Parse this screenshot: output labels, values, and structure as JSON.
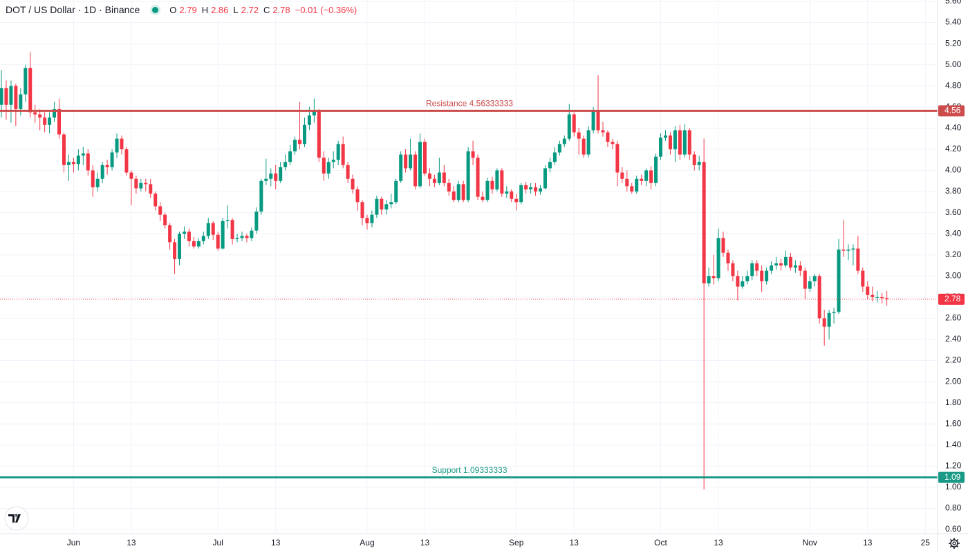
{
  "chart_data": {
    "type": "candlestick",
    "title": "DOT / US Dollar · 1D · Binance",
    "ohlc_legend": [
      {
        "label": "O",
        "value": 2.79
      },
      {
        "label": "H",
        "value": 2.86
      },
      {
        "label": "L",
        "value": 2.72
      },
      {
        "label": "C",
        "value": 2.78
      }
    ],
    "change": "−0.01 (−0.36%)",
    "categories": [
      null,
      null,
      null,
      null,
      null,
      null,
      null,
      null,
      null,
      null,
      null,
      null,
      null,
      null,
      null,
      "Jun",
      null,
      null,
      null,
      null,
      null,
      null,
      null,
      null,
      null,
      null,
      null,
      "13",
      null,
      null,
      null,
      null,
      null,
      null,
      null,
      null,
      null,
      null,
      null,
      null,
      null,
      null,
      null,
      null,
      null,
      "Jul",
      null,
      null,
      null,
      null,
      null,
      null,
      null,
      null,
      null,
      null,
      null,
      "13",
      null,
      null,
      null,
      null,
      null,
      null,
      null,
      null,
      null,
      null,
      null,
      null,
      null,
      null,
      null,
      null,
      null,
      null,
      "Aug",
      null,
      null,
      null,
      null,
      null,
      null,
      null,
      null,
      null,
      null,
      null,
      "13",
      null,
      null,
      null,
      null,
      null,
      null,
      null,
      null,
      null,
      null,
      null,
      null,
      null,
      null,
      null,
      null,
      null,
      null,
      "Sep",
      null,
      null,
      null,
      null,
      null,
      null,
      null,
      null,
      null,
      null,
      null,
      "13",
      null,
      null,
      null,
      null,
      null,
      null,
      null,
      null,
      null,
      null,
      null,
      null,
      null,
      null,
      null,
      null,
      null,
      "Oct",
      null,
      null,
      null,
      null,
      null,
      null,
      null,
      null,
      null,
      null,
      null,
      "13",
      null,
      null,
      null,
      null,
      null,
      null,
      null,
      null,
      null,
      null,
      null,
      null,
      null,
      null,
      null,
      null,
      null,
      null,
      "Nov",
      null,
      null,
      null,
      null,
      null,
      null,
      null,
      null,
      null,
      null,
      null,
      "13",
      null,
      null,
      null,
      null,
      null,
      null,
      null,
      null,
      null,
      null,
      null,
      "25",
      null,
      null
    ],
    "open": [
      4.62,
      4.78,
      4.62,
      4.8,
      4.58,
      4.72,
      4.97,
      4.55,
      4.53,
      4.5,
      4.43,
      4.5,
      4.58,
      4.34,
      4.05,
      4.08,
      4.06,
      4.14,
      4.16,
      4.0,
      3.84,
      3.92,
      4.05,
      4.03,
      4.17,
      4.3,
      4.2,
      3.98,
      3.92,
      3.83,
      3.88,
      3.87,
      3.78,
      3.66,
      3.58,
      3.48,
      3.32,
      3.16,
      3.4,
      3.42,
      3.33,
      3.28,
      3.33,
      3.38,
      3.5,
      3.39,
      3.26,
      3.52,
      3.53,
      3.35,
      3.36,
      3.38,
      3.36,
      3.43,
      3.61,
      3.9,
      3.92,
      3.97,
      3.9,
      4.03,
      4.08,
      4.18,
      4.29,
      4.25,
      4.43,
      4.52,
      4.56,
      4.12,
      3.97,
      4.08,
      4.1,
      4.25,
      4.05,
      3.92,
      3.82,
      3.7,
      3.55,
      3.5,
      3.58,
      3.73,
      3.63,
      3.68,
      3.7,
      3.9,
      4.15,
      4.02,
      4.15,
      3.85,
      4.27,
      3.97,
      3.92,
      3.88,
      3.98,
      3.88,
      3.8,
      3.72,
      3.87,
      3.72,
      4.18,
      4.12,
      3.75,
      3.72,
      3.9,
      3.82,
      4.0,
      3.78,
      3.8,
      3.73,
      3.7,
      3.86,
      3.82,
      3.84,
      3.8,
      3.83,
      4.02,
      4.08,
      4.17,
      4.25,
      4.3,
      4.53,
      4.36,
      4.3,
      4.15,
      4.38,
      4.56,
      4.38,
      4.36,
      4.27,
      4.25,
      3.98,
      3.92,
      3.85,
      3.8,
      3.92,
      3.9,
      4.0,
      3.88,
      4.13,
      4.31,
      4.33,
      4.2,
      4.38,
      4.15,
      4.38,
      4.15,
      4.05,
      4.08,
      2.93,
      3.0,
      2.98,
      3.36,
      3.22,
      3.12,
      3.0,
      2.9,
      2.95,
      3.0,
      3.12,
      3.05,
      2.95,
      3.05,
      3.1,
      3.12,
      3.1,
      3.18,
      3.08,
      3.1,
      3.05,
      2.88,
      2.95,
      3.0,
      2.6,
      2.52,
      2.65,
      2.66,
      3.25,
      3.24,
      3.25,
      3.26,
      3.05,
      2.9,
      2.82,
      2.8,
      2.8,
      2.79,
      null,
      null,
      null,
      null,
      null,
      null,
      null,
      null,
      null,
      null
    ],
    "high": [
      4.95,
      4.85,
      4.85,
      4.82,
      4.78,
      5.0,
      5.12,
      4.62,
      4.58,
      4.55,
      4.55,
      4.65,
      4.68,
      4.36,
      4.15,
      4.12,
      4.2,
      4.22,
      4.2,
      4.05,
      3.98,
      4.08,
      4.1,
      4.2,
      4.35,
      4.33,
      4.22,
      4.0,
      3.95,
      3.92,
      3.92,
      3.92,
      3.8,
      3.7,
      3.6,
      3.5,
      3.35,
      3.42,
      3.47,
      3.45,
      3.37,
      3.36,
      3.42,
      3.55,
      3.52,
      3.42,
      3.55,
      3.67,
      3.55,
      3.4,
      3.42,
      3.4,
      3.46,
      3.65,
      3.92,
      4.11,
      4.02,
      4.05,
      4.08,
      4.15,
      4.24,
      4.32,
      4.65,
      4.5,
      4.6,
      4.68,
      4.58,
      4.18,
      4.12,
      4.18,
      4.28,
      4.32,
      4.08,
      3.96,
      3.85,
      3.72,
      3.58,
      3.62,
      3.76,
      3.75,
      3.72,
      3.78,
      3.92,
      4.18,
      4.2,
      4.3,
      4.18,
      4.35,
      4.3,
      4.02,
      3.96,
      4.12,
      4.05,
      3.92,
      3.85,
      3.9,
      3.9,
      4.22,
      4.28,
      4.15,
      3.8,
      3.93,
      3.94,
      4.02,
      4.02,
      3.85,
      3.82,
      3.78,
      3.88,
      3.89,
      3.88,
      3.88,
      3.86,
      4.05,
      4.12,
      4.22,
      4.28,
      4.33,
      4.63,
      4.55,
      4.4,
      4.33,
      4.42,
      4.6,
      4.9,
      4.46,
      4.38,
      4.3,
      4.28,
      4.03,
      4.0,
      3.88,
      3.95,
      3.96,
      4.02,
      4.04,
      4.16,
      4.35,
      4.38,
      4.36,
      4.42,
      4.43,
      4.44,
      4.4,
      4.18,
      4.14,
      4.3,
      3.08,
      3.2,
      3.45,
      3.42,
      3.25,
      3.15,
      3.05,
      3.0,
      3.05,
      3.15,
      3.15,
      3.1,
      3.08,
      3.14,
      3.18,
      3.16,
      3.24,
      3.22,
      3.15,
      3.14,
      3.08,
      3.0,
      3.02,
      3.02,
      2.68,
      2.68,
      2.7,
      3.35,
      3.53,
      3.3,
      3.3,
      3.38,
      3.08,
      2.95,
      2.9,
      2.86,
      2.84,
      2.86,
      null,
      null,
      null,
      null,
      null,
      null,
      null,
      null,
      null,
      null
    ],
    "low": [
      4.5,
      4.48,
      4.45,
      4.42,
      4.52,
      4.65,
      4.5,
      4.45,
      4.38,
      4.36,
      4.35,
      4.46,
      4.3,
      3.98,
      3.9,
      3.98,
      4.0,
      4.05,
      3.95,
      3.75,
      3.8,
      3.88,
      3.96,
      4.0,
      4.12,
      4.15,
      3.95,
      3.67,
      3.78,
      3.8,
      3.8,
      3.74,
      3.62,
      3.52,
      3.45,
      3.25,
      3.02,
      3.1,
      3.35,
      3.28,
      3.26,
      3.26,
      3.3,
      3.35,
      3.34,
      3.24,
      3.25,
      3.45,
      3.3,
      3.32,
      3.33,
      3.32,
      3.33,
      3.4,
      3.58,
      3.86,
      3.85,
      3.82,
      3.88,
      4.0,
      4.05,
      4.15,
      4.2,
      4.22,
      4.38,
      4.45,
      4.08,
      3.9,
      3.92,
      4.02,
      4.05,
      4.02,
      3.88,
      3.78,
      3.62,
      3.48,
      3.44,
      3.46,
      3.55,
      3.58,
      3.58,
      3.64,
      3.68,
      3.88,
      3.98,
      4.0,
      3.82,
      3.83,
      3.95,
      3.85,
      3.84,
      3.86,
      3.85,
      3.76,
      3.7,
      3.7,
      3.7,
      3.7,
      4.05,
      3.72,
      3.7,
      3.7,
      3.78,
      3.8,
      3.75,
      3.74,
      3.7,
      3.62,
      3.68,
      3.78,
      3.78,
      3.76,
      3.77,
      3.82,
      3.98,
      4.05,
      4.14,
      4.22,
      4.28,
      4.32,
      4.15,
      4.12,
      4.12,
      4.35,
      4.35,
      4.32,
      4.22,
      4.2,
      3.85,
      3.88,
      3.8,
      3.78,
      3.78,
      3.86,
      3.85,
      3.82,
      3.85,
      4.1,
      4.28,
      4.15,
      4.08,
      4.1,
      4.12,
      4.1,
      4.0,
      4.0,
      0.98,
      2.9,
      2.92,
      2.95,
      3.18,
      3.05,
      2.95,
      2.77,
      2.88,
      2.92,
      2.96,
      3.0,
      2.85,
      2.92,
      3.02,
      3.06,
      3.05,
      3.08,
      3.05,
      3.03,
      3.0,
      2.78,
      2.85,
      2.9,
      2.55,
      2.34,
      2.4,
      2.55,
      2.64,
      3.18,
      3.15,
      3.1,
      3.02,
      2.85,
      2.78,
      2.76,
      2.75,
      2.74,
      2.72,
      null,
      null,
      null,
      null,
      null,
      null,
      null,
      null,
      null,
      null
    ],
    "close": [
      4.78,
      4.62,
      4.8,
      4.58,
      4.72,
      4.97,
      4.55,
      4.53,
      4.5,
      4.43,
      4.5,
      4.58,
      4.34,
      4.05,
      4.08,
      4.06,
      4.14,
      4.16,
      4.0,
      3.84,
      3.92,
      4.05,
      4.03,
      4.17,
      4.3,
      4.2,
      3.98,
      3.92,
      3.83,
      3.88,
      3.87,
      3.78,
      3.66,
      3.58,
      3.48,
      3.32,
      3.16,
      3.4,
      3.42,
      3.33,
      3.28,
      3.33,
      3.38,
      3.5,
      3.39,
      3.26,
      3.52,
      3.53,
      3.35,
      3.36,
      3.38,
      3.36,
      3.43,
      3.61,
      3.9,
      3.92,
      3.97,
      3.9,
      4.03,
      4.08,
      4.18,
      4.29,
      4.25,
      4.43,
      4.52,
      4.56,
      4.12,
      3.97,
      4.08,
      4.1,
      4.25,
      4.05,
      3.92,
      3.82,
      3.7,
      3.55,
      3.5,
      3.58,
      3.73,
      3.63,
      3.68,
      3.7,
      3.9,
      4.15,
      4.02,
      4.15,
      3.85,
      4.27,
      3.97,
      3.92,
      3.88,
      3.98,
      3.88,
      3.8,
      3.72,
      3.87,
      3.72,
      4.18,
      4.12,
      3.75,
      3.72,
      3.9,
      3.82,
      4.0,
      3.78,
      3.8,
      3.73,
      3.7,
      3.86,
      3.82,
      3.84,
      3.8,
      3.83,
      4.02,
      4.08,
      4.17,
      4.25,
      4.3,
      4.53,
      4.36,
      4.3,
      4.15,
      4.38,
      4.56,
      4.38,
      4.36,
      4.27,
      4.25,
      3.98,
      3.92,
      3.85,
      3.8,
      3.92,
      3.9,
      4.0,
      3.88,
      4.13,
      4.31,
      4.33,
      4.2,
      4.38,
      4.15,
      4.38,
      4.15,
      4.05,
      4.08,
      2.93,
      3.0,
      2.98,
      3.36,
      3.22,
      3.12,
      3.0,
      2.9,
      2.95,
      3.0,
      3.12,
      3.05,
      2.95,
      3.05,
      3.1,
      3.12,
      3.1,
      3.18,
      3.08,
      3.1,
      3.05,
      2.88,
      2.95,
      3.0,
      2.6,
      2.52,
      2.65,
      2.66,
      3.25,
      3.24,
      3.25,
      3.26,
      3.05,
      2.9,
      2.82,
      2.8,
      2.8,
      2.79,
      2.78,
      null,
      null,
      null,
      null,
      null,
      null,
      null,
      null,
      null,
      null
    ],
    "up_color": "#089981",
    "down_color": "#f23645",
    "levels": [
      {
        "label": "Resistance 4.56333333",
        "value": 4.56333333,
        "value_label": "4.56",
        "color": "#cc4b4b"
      },
      {
        "label": "Support 1.09333333",
        "value": 1.09333333,
        "value_label": "1.09",
        "color": "#1a9a86"
      }
    ],
    "last_price": {
      "value": 2.78,
      "color": "#f23645"
    },
    "ylim": [
      0.561,
      5.613
    ],
    "yticks": [
      {
        "value": 0.6,
        "label": "0.60"
      },
      {
        "value": 0.8,
        "label": "0.80"
      },
      {
        "value": 1,
        "label": "1.00"
      },
      {
        "value": 1.2,
        "label": "1.20"
      },
      {
        "value": 1.4,
        "label": "1.40"
      },
      {
        "value": 1.6,
        "label": "1.60"
      },
      {
        "value": 1.8,
        "label": "1.80"
      },
      {
        "value": 2,
        "label": "2.00"
      },
      {
        "value": 2.2,
        "label": "2.20"
      },
      {
        "value": 2.4,
        "label": "2.40"
      },
      {
        "value": 2.6,
        "label": "2.60"
      },
      {
        "value": 2.8,
        "label": "2.80"
      },
      {
        "value": 3,
        "label": "3.00"
      },
      {
        "value": 3.2,
        "label": "3.20"
      },
      {
        "value": 3.4,
        "label": "3.40"
      },
      {
        "value": 3.6,
        "label": "3.60"
      },
      {
        "value": 3.8,
        "label": "3.80"
      },
      {
        "value": 4,
        "label": "4.00"
      },
      {
        "value": 4.2,
        "label": "4.20"
      },
      {
        "value": 4.4,
        "label": "4.40"
      },
      {
        "value": 4.6,
        "label": "4.60"
      },
      {
        "value": 4.8,
        "label": "4.80"
      },
      {
        "value": 5,
        "label": "5.00"
      },
      {
        "value": 5.2,
        "label": "5.20"
      },
      {
        "value": 5.4,
        "label": "5.40"
      },
      {
        "value": 5.6,
        "label": "5.60"
      }
    ],
    "grid": true
  }
}
